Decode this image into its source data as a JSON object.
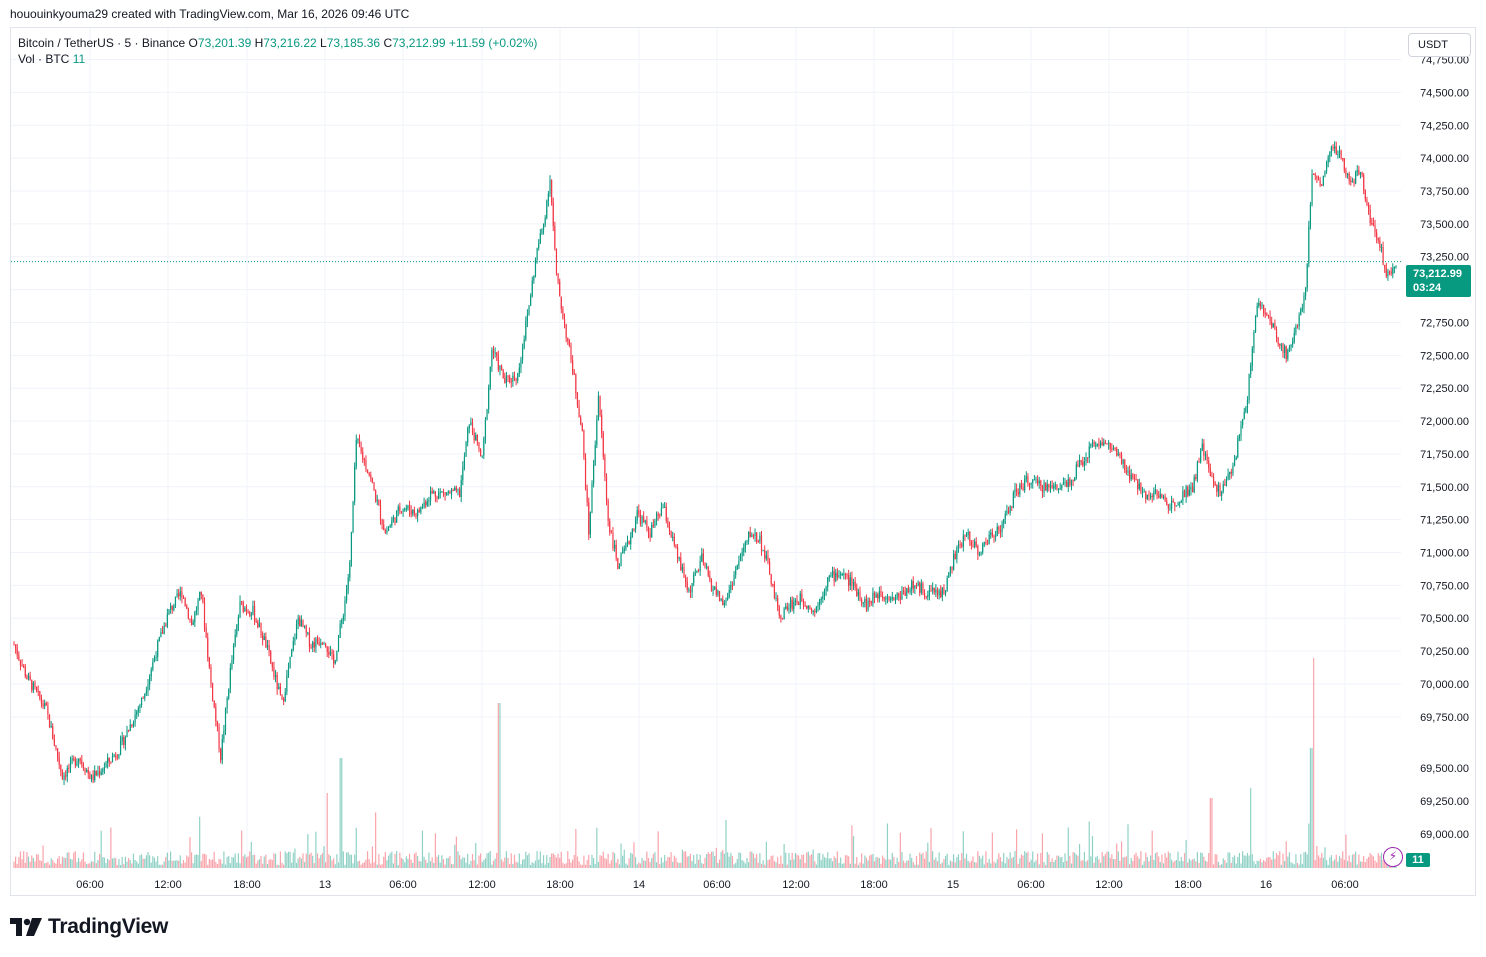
{
  "caption": "hououinkyouma29 created with TradingView.com, Mar 16, 2026 09:46 UTC",
  "legend": {
    "symbol": "Bitcoin / TetherUS · 5 · Binance",
    "o_label": "O",
    "o_value": "73,201.39",
    "h_label": "H",
    "h_value": "73,216.22",
    "l_label": "L",
    "l_value": "73,185.36",
    "c_label": "C",
    "c_value": "73,212.99",
    "change": "+11.59 (+0.02%)",
    "vol_label": "Vol · BTC",
    "vol_value": "11"
  },
  "currency": "USDT",
  "last_price": "73,212.99",
  "countdown": "03:24",
  "volume_tag": "11",
  "footer_brand": "TradingView",
  "colors": {
    "up": "#089981",
    "down": "#f23645",
    "grid": "#f0f3fa",
    "text": "#131722"
  },
  "chart_data": {
    "type": "candlestick",
    "symbol": "Bitcoin / TetherUS",
    "interval": "5",
    "exchange": "Binance",
    "y_ticks": [
      69750,
      70000,
      70250,
      70500,
      70750,
      71000,
      71250,
      71500,
      71750,
      72000,
      72250,
      72500,
      72750,
      73000,
      73250,
      73500,
      73750,
      74000,
      74250,
      74500,
      74750
    ],
    "y_tick_labels": [
      "69,750.00",
      "70,000.00",
      "70,250.00",
      "70,500.00",
      "70,750.00",
      "71,000.00",
      "71,250.00",
      "71,500.00",
      "71,750.00",
      "72,000.00",
      "72,250.00",
      "72,500.00",
      "72,750.00",
      "73,000.00",
      "73,250.00",
      "73,500.00",
      "73,750.00",
      "74,000.00",
      "74,250.00",
      "74,500.00",
      "74,750.00"
    ],
    "extra_y_labels": [
      "69,500.00",
      "69,250.00",
      "69,000.00"
    ],
    "ylim": [
      68600,
      74990
    ],
    "x_ticks": [
      "06:00",
      "12:00",
      "18:00",
      "13",
      "06:00",
      "12:00",
      "18:00",
      "14",
      "06:00",
      "12:00",
      "18:00",
      "15",
      "06:00",
      "12:00",
      "18:00",
      "16",
      "06:00"
    ],
    "last_close": 73212.99,
    "price_path": [
      [
        0,
        70300
      ],
      [
        8,
        70050
      ],
      [
        20,
        69800
      ],
      [
        30,
        69300
      ],
      [
        40,
        69450
      ],
      [
        48,
        69280
      ],
      [
        58,
        69400
      ],
      [
        65,
        69500
      ],
      [
        80,
        69900
      ],
      [
        88,
        70250
      ],
      [
        96,
        70550
      ],
      [
        104,
        70700
      ],
      [
        110,
        70450
      ],
      [
        116,
        70700
      ],
      [
        122,
        70000
      ],
      [
        128,
        69450
      ],
      [
        134,
        70100
      ],
      [
        140,
        70600
      ],
      [
        148,
        70550
      ],
      [
        156,
        70300
      ],
      [
        166,
        69850
      ],
      [
        176,
        70500
      ],
      [
        184,
        70300
      ],
      [
        192,
        70350
      ],
      [
        198,
        70150
      ],
      [
        204,
        70550
      ],
      [
        208,
        70900
      ],
      [
        212,
        71850
      ],
      [
        220,
        71600
      ],
      [
        230,
        71150
      ],
      [
        240,
        71350
      ],
      [
        250,
        71300
      ],
      [
        258,
        71450
      ],
      [
        268,
        71450
      ],
      [
        276,
        71450
      ],
      [
        282,
        72000
      ],
      [
        290,
        71700
      ],
      [
        296,
        72550
      ],
      [
        304,
        72300
      ],
      [
        312,
        72350
      ],
      [
        318,
        72800
      ],
      [
        324,
        73300
      ],
      [
        328,
        73500
      ],
      [
        332,
        73850
      ],
      [
        336,
        73100
      ],
      [
        340,
        72800
      ],
      [
        346,
        72400
      ],
      [
        352,
        71900
      ],
      [
        356,
        71150
      ],
      [
        362,
        72200
      ],
      [
        368,
        71250
      ],
      [
        374,
        70900
      ],
      [
        380,
        71050
      ],
      [
        386,
        71300
      ],
      [
        394,
        71150
      ],
      [
        402,
        71350
      ],
      [
        410,
        71000
      ],
      [
        418,
        70700
      ],
      [
        426,
        70950
      ],
      [
        432,
        70750
      ],
      [
        440,
        70600
      ],
      [
        448,
        70900
      ],
      [
        456,
        71150
      ],
      [
        462,
        71100
      ],
      [
        468,
        70850
      ],
      [
        474,
        70500
      ],
      [
        480,
        70600
      ],
      [
        488,
        70650
      ],
      [
        496,
        70550
      ],
      [
        504,
        70800
      ],
      [
        512,
        70850
      ],
      [
        520,
        70750
      ],
      [
        528,
        70600
      ],
      [
        536,
        70700
      ],
      [
        546,
        70650
      ],
      [
        556,
        70750
      ],
      [
        566,
        70700
      ],
      [
        576,
        70700
      ],
      [
        582,
        70950
      ],
      [
        590,
        71150
      ],
      [
        598,
        71000
      ],
      [
        606,
        71150
      ],
      [
        612,
        71200
      ],
      [
        620,
        71450
      ],
      [
        628,
        71550
      ],
      [
        636,
        71500
      ],
      [
        646,
        71500
      ],
      [
        654,
        71550
      ],
      [
        662,
        71700
      ],
      [
        670,
        71850
      ],
      [
        680,
        71800
      ],
      [
        690,
        71600
      ],
      [
        700,
        71450
      ],
      [
        708,
        71450
      ],
      [
        716,
        71350
      ],
      [
        724,
        71450
      ],
      [
        730,
        71500
      ],
      [
        736,
        71800
      ],
      [
        742,
        71550
      ],
      [
        748,
        71450
      ],
      [
        756,
        71700
      ],
      [
        764,
        72200
      ],
      [
        770,
        72900
      ],
      [
        776,
        72800
      ],
      [
        782,
        72650
      ],
      [
        788,
        72500
      ],
      [
        794,
        72700
      ],
      [
        800,
        73000
      ],
      [
        804,
        73900
      ],
      [
        810,
        73800
      ],
      [
        816,
        74100
      ],
      [
        822,
        74000
      ],
      [
        828,
        73800
      ],
      [
        834,
        73900
      ],
      [
        840,
        73550
      ],
      [
        846,
        73350
      ],
      [
        850,
        73100
      ],
      [
        856,
        73213
      ]
    ],
    "price_path_x_units": "5-minute bars from start of the visible range"
  }
}
